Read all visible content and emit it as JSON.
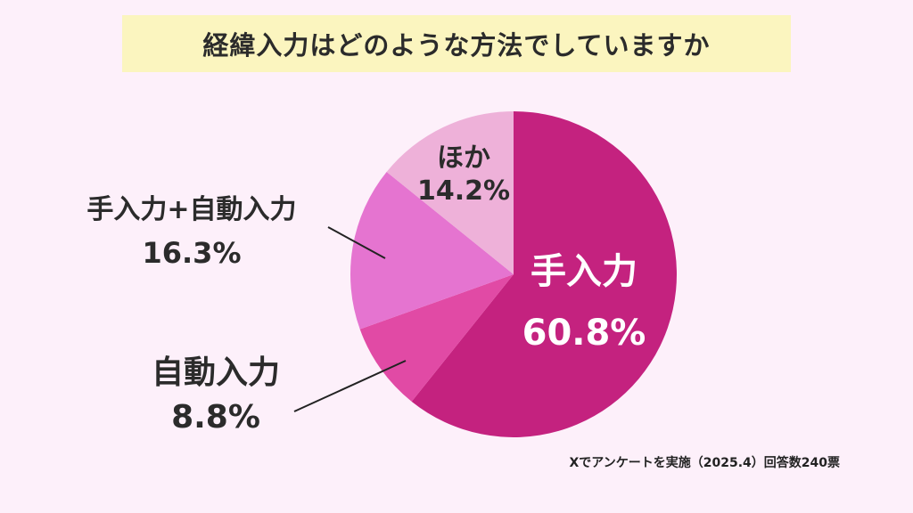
{
  "title": "経緯入力はどのような方法でしていますか",
  "footnote": "Xでアンケートを実施（2025.4）回答数240票",
  "chart_data": {
    "type": "pie",
    "title": "経緯入力はどのような方法でしていますか",
    "slices": [
      {
        "label": "手入力",
        "value": 60.8,
        "display": "60.8%",
        "color": "#c4227f"
      },
      {
        "label": "自動入力",
        "value": 8.8,
        "display": "8.8%",
        "color": "#e14aa5"
      },
      {
        "label": "手入力+自動入力",
        "value": 16.3,
        "display": "16.3%",
        "color": "#e574d0"
      },
      {
        "label": "ほか",
        "value": 14.2,
        "display": "14.2%",
        "color": "#eeb1d9"
      }
    ]
  }
}
